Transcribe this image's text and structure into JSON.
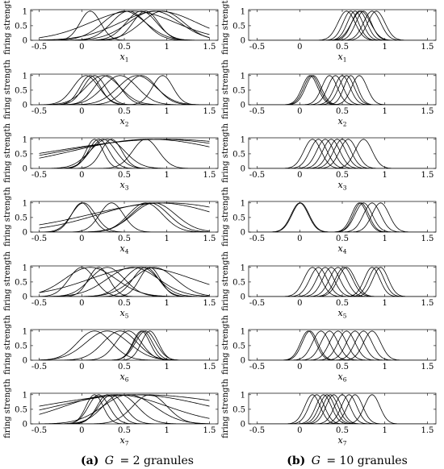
{
  "figure": {
    "captions": [
      {
        "label": "(a)",
        "g": "G",
        "text": "= 2 granules"
      },
      {
        "label": "(b)",
        "g": "G",
        "text": "= 10 granules"
      }
    ]
  },
  "chart_data": [
    {
      "type": "line",
      "panel": "a1",
      "ylabel": "firing strength",
      "xlabel": "x",
      "xsub": "1",
      "xlim": [
        -0.6,
        1.6
      ],
      "ylim": [
        0,
        1.05
      ],
      "xticks": [
        -0.5,
        0,
        0.5,
        1,
        1.5
      ],
      "yticks": [
        0,
        0.5,
        1
      ],
      "curves": [
        {
          "c": 0.1,
          "s": 0.12
        },
        {
          "c": 0.5,
          "s": 0.25
        },
        {
          "c": 0.55,
          "s": 0.2
        },
        {
          "c": 0.6,
          "s": 0.5
        },
        {
          "c": 0.7,
          "s": 0.18
        },
        {
          "c": 0.75,
          "s": 0.15
        },
        {
          "c": 0.85,
          "s": 0.3
        },
        {
          "c": 0.95,
          "s": 0.25
        },
        {
          "c": 0.9,
          "s": 0.45
        }
      ]
    },
    {
      "type": "line",
      "panel": "b1",
      "ylabel": "",
      "xlabel": "x",
      "xsub": "1",
      "xlim": [
        -0.6,
        1.6
      ],
      "ylim": [
        0,
        1.05
      ],
      "xticks": [
        -0.5,
        0,
        0.5,
        1,
        1.5
      ],
      "yticks": [
        0,
        0.5,
        1
      ],
      "curves": [
        {
          "c": 0.55,
          "s": 0.1
        },
        {
          "c": 0.6,
          "s": 0.09
        },
        {
          "c": 0.65,
          "s": 0.09
        },
        {
          "c": 0.7,
          "s": 0.09
        },
        {
          "c": 0.72,
          "s": 0.11
        },
        {
          "c": 0.75,
          "s": 0.09
        },
        {
          "c": 0.85,
          "s": 0.1
        },
        {
          "c": 0.9,
          "s": 0.1
        }
      ]
    },
    {
      "type": "line",
      "panel": "a2",
      "ylabel": "firing strength",
      "xlabel": "x",
      "xsub": "2",
      "xlim": [
        -0.6,
        1.6
      ],
      "ylim": [
        0,
        1.05
      ],
      "xticks": [
        -0.5,
        0,
        0.5,
        1,
        1.5
      ],
      "yticks": [
        0,
        0.5,
        1
      ],
      "curves": [
        {
          "c": 0.05,
          "s": 0.15
        },
        {
          "c": 0.1,
          "s": 0.12
        },
        {
          "c": 0.15,
          "s": 0.13
        },
        {
          "c": 0.25,
          "s": 0.2
        },
        {
          "c": 0.3,
          "s": 0.15
        },
        {
          "c": 0.45,
          "s": 0.2
        },
        {
          "c": 0.65,
          "s": 0.22
        },
        {
          "c": 0.7,
          "s": 0.18
        },
        {
          "c": 0.95,
          "s": 0.12
        }
      ]
    },
    {
      "type": "line",
      "panel": "b2",
      "ylabel": "",
      "xlabel": "x",
      "xsub": "2",
      "xlim": [
        -0.6,
        1.6
      ],
      "ylim": [
        0,
        1.05
      ],
      "xticks": [
        -0.5,
        0,
        0.5,
        1,
        1.5
      ],
      "yticks": [
        0,
        0.5,
        1
      ],
      "curves": [
        {
          "c": 0.12,
          "s": 0.09
        },
        {
          "c": 0.14,
          "s": 0.09
        },
        {
          "c": 0.16,
          "s": 0.09
        },
        {
          "c": 0.35,
          "s": 0.09
        },
        {
          "c": 0.42,
          "s": 0.09
        },
        {
          "c": 0.5,
          "s": 0.09
        },
        {
          "c": 0.55,
          "s": 0.09
        },
        {
          "c": 0.6,
          "s": 0.08
        },
        {
          "c": 0.7,
          "s": 0.09
        }
      ]
    },
    {
      "type": "line",
      "panel": "a3",
      "ylabel": "firing strength",
      "xlabel": "x",
      "xsub": "3",
      "xlim": [
        -0.6,
        1.6
      ],
      "ylim": [
        0,
        1.05
      ],
      "xticks": [
        -0.5,
        0,
        0.5,
        1,
        1.5
      ],
      "yticks": [
        0,
        0.5,
        1
      ],
      "curves": [
        {
          "c": 0.15,
          "s": 0.1
        },
        {
          "c": 0.2,
          "s": 0.12
        },
        {
          "c": 0.25,
          "s": 0.15
        },
        {
          "c": 0.3,
          "s": 0.2
        },
        {
          "c": 0.35,
          "s": 0.12
        },
        {
          "c": 0.75,
          "s": 0.15
        },
        {
          "c": 0.8,
          "s": 0.9
        },
        {
          "c": 0.9,
          "s": 1.1
        },
        {
          "c": 1.0,
          "s": 1.3
        }
      ]
    },
    {
      "type": "line",
      "panel": "b3",
      "ylabel": "",
      "xlabel": "x",
      "xsub": "3",
      "xlim": [
        -0.6,
        1.6
      ],
      "ylim": [
        0,
        1.05
      ],
      "xticks": [
        -0.5,
        0,
        0.5,
        1,
        1.5
      ],
      "yticks": [
        0,
        0.5,
        1
      ],
      "curves": [
        {
          "c": 0.15,
          "s": 0.1
        },
        {
          "c": 0.22,
          "s": 0.1
        },
        {
          "c": 0.3,
          "s": 0.1
        },
        {
          "c": 0.37,
          "s": 0.1
        },
        {
          "c": 0.44,
          "s": 0.1
        },
        {
          "c": 0.5,
          "s": 0.1
        },
        {
          "c": 0.57,
          "s": 0.1
        },
        {
          "c": 0.75,
          "s": 0.1
        }
      ]
    },
    {
      "type": "line",
      "panel": "a4",
      "ylabel": "firing strength",
      "xlabel": "x",
      "xsub": "4",
      "xlim": [
        -0.6,
        1.6
      ],
      "ylim": [
        0,
        1.05
      ],
      "xticks": [
        -0.5,
        0,
        0.5,
        1,
        1.5
      ],
      "yticks": [
        0,
        0.5,
        1
      ],
      "curves": [
        {
          "c": 0.0,
          "s": 0.12
        },
        {
          "c": 0.02,
          "s": 0.14
        },
        {
          "c": 0.35,
          "s": 0.14
        },
        {
          "c": 0.75,
          "s": 0.2
        },
        {
          "c": 0.8,
          "s": 0.22
        },
        {
          "c": 0.85,
          "s": 0.25
        },
        {
          "c": 0.9,
          "s": 0.7
        },
        {
          "c": 1.0,
          "s": 0.9
        }
      ]
    },
    {
      "type": "line",
      "panel": "b4",
      "ylabel": "",
      "xlabel": "x",
      "xsub": "4",
      "xlim": [
        -0.6,
        1.6
      ],
      "ylim": [
        0,
        1.05
      ],
      "xticks": [
        -0.5,
        0,
        0.5,
        1,
        1.5
      ],
      "yticks": [
        0,
        0.5,
        1
      ],
      "curves": [
        {
          "c": 0.0,
          "s": 0.1
        },
        {
          "c": 0.01,
          "s": 0.1
        },
        {
          "c": 0.7,
          "s": 0.09
        },
        {
          "c": 0.72,
          "s": 0.09
        },
        {
          "c": 0.75,
          "s": 0.1
        },
        {
          "c": 0.85,
          "s": 0.1
        },
        {
          "c": 0.95,
          "s": 0.1
        }
      ]
    },
    {
      "type": "line",
      "panel": "a5",
      "ylabel": "firing strength",
      "xlabel": "x",
      "xsub": "5",
      "xlim": [
        -0.6,
        1.6
      ],
      "ylim": [
        0,
        1.05
      ],
      "xticks": [
        -0.5,
        0,
        0.5,
        1,
        1.5
      ],
      "yticks": [
        0,
        0.5,
        1
      ],
      "curves": [
        {
          "c": 0.0,
          "s": 0.15
        },
        {
          "c": 0.1,
          "s": 0.3
        },
        {
          "c": 0.2,
          "s": 0.12
        },
        {
          "c": 0.3,
          "s": 0.2
        },
        {
          "c": 0.6,
          "s": 0.3
        },
        {
          "c": 0.7,
          "s": 0.2
        },
        {
          "c": 0.75,
          "s": 0.15
        },
        {
          "c": 0.8,
          "s": 0.12
        },
        {
          "c": 0.85,
          "s": 0.25
        },
        {
          "c": 0.7,
          "s": 0.6
        }
      ]
    },
    {
      "type": "line",
      "panel": "b5",
      "ylabel": "",
      "xlabel": "x",
      "xsub": "5",
      "xlim": [
        -0.6,
        1.6
      ],
      "ylim": [
        0,
        1.05
      ],
      "xticks": [
        -0.5,
        0,
        0.5,
        1,
        1.5
      ],
      "yticks": [
        0,
        0.5,
        1
      ],
      "curves": [
        {
          "c": 0.15,
          "s": 0.1
        },
        {
          "c": 0.22,
          "s": 0.1
        },
        {
          "c": 0.3,
          "s": 0.1
        },
        {
          "c": 0.37,
          "s": 0.1
        },
        {
          "c": 0.45,
          "s": 0.1
        },
        {
          "c": 0.52,
          "s": 0.1
        },
        {
          "c": 0.55,
          "s": 0.1
        },
        {
          "c": 0.85,
          "s": 0.09
        },
        {
          "c": 0.9,
          "s": 0.09
        },
        {
          "c": 0.95,
          "s": 0.09
        }
      ]
    },
    {
      "type": "line",
      "panel": "a6",
      "ylabel": "firing strength",
      "xlabel": "x",
      "xsub": "6",
      "xlim": [
        -0.6,
        1.6
      ],
      "ylim": [
        0,
        1.05
      ],
      "xticks": [
        -0.5,
        0,
        0.5,
        1,
        1.5
      ],
      "yticks": [
        0,
        0.5,
        1
      ],
      "curves": [
        {
          "c": 0.15,
          "s": 0.2
        },
        {
          "c": 0.3,
          "s": 0.25
        },
        {
          "c": 0.45,
          "s": 0.2
        },
        {
          "c": 0.55,
          "s": 0.15
        },
        {
          "c": 0.7,
          "s": 0.1
        },
        {
          "c": 0.72,
          "s": 0.11
        },
        {
          "c": 0.75,
          "s": 0.12
        },
        {
          "c": 0.8,
          "s": 0.1
        }
      ]
    },
    {
      "type": "line",
      "panel": "b6",
      "ylabel": "",
      "xlabel": "x",
      "xsub": "6",
      "xlim": [
        -0.6,
        1.6
      ],
      "ylim": [
        0,
        1.05
      ],
      "xticks": [
        -0.5,
        0,
        0.5,
        1,
        1.5
      ],
      "yticks": [
        0,
        0.5,
        1
      ],
      "curves": [
        {
          "c": 0.1,
          "s": 0.09
        },
        {
          "c": 0.12,
          "s": 0.09
        },
        {
          "c": 0.25,
          "s": 0.1
        },
        {
          "c": 0.35,
          "s": 0.1
        },
        {
          "c": 0.45,
          "s": 0.1
        },
        {
          "c": 0.55,
          "s": 0.1
        },
        {
          "c": 0.65,
          "s": 0.1
        },
        {
          "c": 0.75,
          "s": 0.1
        },
        {
          "c": 0.85,
          "s": 0.1
        }
      ]
    },
    {
      "type": "line",
      "panel": "a7",
      "ylabel": "firing strength",
      "xlabel": "x",
      "xsub": "7",
      "xlim": [
        -0.6,
        1.6
      ],
      "ylim": [
        0,
        1.05
      ],
      "xticks": [
        -0.5,
        0,
        0.5,
        1,
        1.5
      ],
      "yticks": [
        0,
        0.5,
        1
      ],
      "curves": [
        {
          "c": 0.15,
          "s": 0.1
        },
        {
          "c": 0.2,
          "s": 0.12
        },
        {
          "c": 0.3,
          "s": 0.12
        },
        {
          "c": 0.35,
          "s": 0.15
        },
        {
          "c": 0.45,
          "s": 0.2
        },
        {
          "c": 0.55,
          "s": 0.3
        },
        {
          "c": 0.8,
          "s": 0.2
        },
        {
          "c": 0.6,
          "s": 0.9
        },
        {
          "c": 0.7,
          "s": 1.2
        },
        {
          "c": 0.4,
          "s": 0.6
        }
      ]
    },
    {
      "type": "line",
      "panel": "b7",
      "ylabel": "",
      "xlabel": "x",
      "xsub": "7",
      "xlim": [
        -0.6,
        1.6
      ],
      "ylim": [
        0,
        1.05
      ],
      "xticks": [
        -0.5,
        0,
        0.5,
        1,
        1.5
      ],
      "yticks": [
        0,
        0.5,
        1
      ],
      "curves": [
        {
          "c": 0.15,
          "s": 0.09
        },
        {
          "c": 0.2,
          "s": 0.09
        },
        {
          "c": 0.28,
          "s": 0.09
        },
        {
          "c": 0.32,
          "s": 0.09
        },
        {
          "c": 0.36,
          "s": 0.09
        },
        {
          "c": 0.4,
          "s": 0.09
        },
        {
          "c": 0.5,
          "s": 0.09
        },
        {
          "c": 0.58,
          "s": 0.09
        },
        {
          "c": 0.65,
          "s": 0.09
        },
        {
          "c": 0.85,
          "s": 0.09
        }
      ]
    }
  ]
}
